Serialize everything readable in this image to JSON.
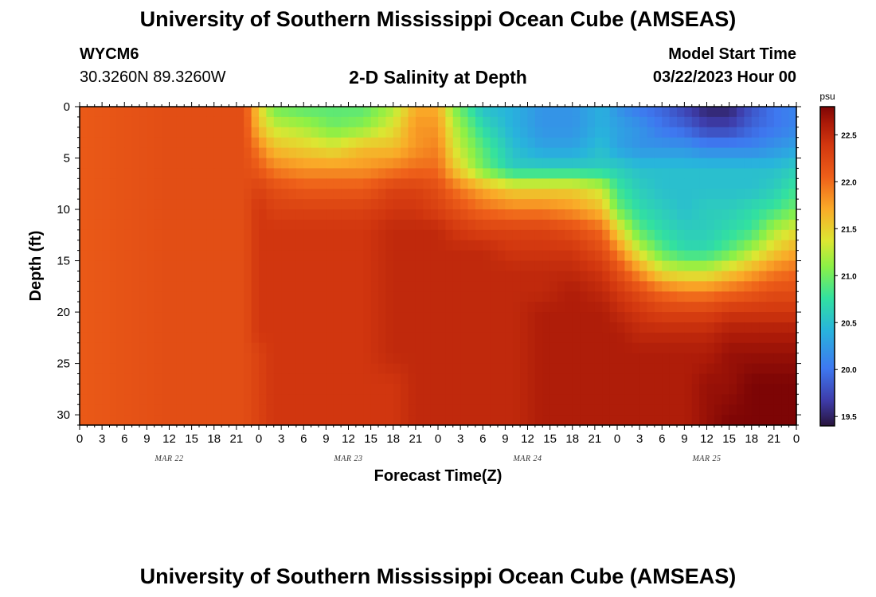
{
  "header": {
    "title": "University of Southern Mississippi Ocean Cube (AMSEAS)",
    "station_id": "WYCM6",
    "station_coords": "30.3260N  89.3260W",
    "plot_title": "2-D Salinity at Depth",
    "model_start_label": "Model Start Time",
    "model_start_value": "03/22/2023 Hour 00"
  },
  "footer": {
    "title": "University of Southern Mississippi Ocean Cube (AMSEAS)"
  },
  "chart_data": {
    "type": "heatmap",
    "title": "2-D Salinity at Depth",
    "xlabel": "Forecast Time(Z)",
    "ylabel": "Depth (ft)",
    "x_range_hours": [
      0,
      96
    ],
    "ylim": [
      0,
      31
    ],
    "y_inverted": true,
    "x_ticks": [
      "0",
      "3",
      "6",
      "9",
      "12",
      "15",
      "18",
      "21",
      "0",
      "3",
      "6",
      "9",
      "12",
      "15",
      "18",
      "21",
      "0",
      "3",
      "6",
      "9",
      "12",
      "15",
      "18",
      "21",
      "0",
      "3",
      "6",
      "9",
      "12",
      "15",
      "18",
      "21",
      "0"
    ],
    "x_tick_hours": [
      0,
      3,
      6,
      9,
      12,
      15,
      18,
      21,
      24,
      27,
      30,
      33,
      36,
      39,
      42,
      45,
      48,
      51,
      54,
      57,
      60,
      63,
      66,
      69,
      72,
      75,
      78,
      81,
      84,
      87,
      90,
      93,
      96
    ],
    "day_labels": [
      {
        "label": "MAR 22",
        "hour": 12
      },
      {
        "label": "MAR 23",
        "hour": 36
      },
      {
        "label": "MAR 24",
        "hour": 60
      },
      {
        "label": "MAR 25",
        "hour": 84
      }
    ],
    "y_ticks": [
      "0",
      "5",
      "10",
      "15",
      "20",
      "25",
      "30"
    ],
    "y_tick_values": [
      0,
      5,
      10,
      15,
      20,
      25,
      30
    ],
    "colorbar": {
      "unit": "psu",
      "min": 19.4,
      "max": 22.8,
      "ticks": [
        "19.5",
        "20.0",
        "20.5",
        "21.0",
        "21.5",
        "22.0",
        "22.5"
      ],
      "tick_values": [
        19.5,
        20.0,
        20.5,
        21.0,
        21.5,
        22.0,
        22.5
      ]
    },
    "salinity_psu": {
      "hours": [
        0,
        12,
        22,
        24,
        26,
        30,
        34,
        38,
        42,
        45,
        48,
        50,
        54,
        58,
        62,
        66,
        70,
        72,
        75,
        78,
        81,
        84,
        87,
        90,
        93,
        96
      ],
      "depths_ft": [
        0,
        2,
        4,
        6,
        8,
        10,
        12,
        14,
        16,
        18,
        20,
        22,
        24,
        27,
        31
      ],
      "values": [
        [
          22.1,
          22.2,
          22.2,
          21.5,
          21.0,
          20.9,
          20.9,
          20.9,
          21.2,
          21.7,
          21.7,
          21.1,
          20.5,
          20.4,
          20.2,
          20.2,
          20.4,
          20.2,
          20.0,
          19.9,
          19.7,
          19.5,
          19.5,
          19.8,
          20.0,
          20.1
        ],
        [
          22.1,
          22.2,
          22.2,
          21.6,
          21.3,
          21.2,
          21.0,
          21.1,
          21.4,
          21.8,
          21.8,
          21.3,
          20.7,
          20.4,
          20.2,
          20.2,
          20.4,
          20.3,
          20.2,
          20.0,
          19.9,
          19.7,
          19.7,
          19.9,
          20.0,
          20.1
        ],
        [
          22.1,
          22.2,
          22.2,
          21.9,
          21.6,
          21.5,
          21.4,
          21.6,
          21.6,
          21.8,
          21.9,
          21.4,
          20.9,
          20.5,
          20.3,
          20.3,
          20.5,
          20.3,
          20.2,
          20.2,
          20.2,
          20.1,
          20.1,
          20.1,
          20.2,
          20.3
        ],
        [
          22.1,
          22.2,
          22.2,
          22.1,
          21.9,
          21.8,
          21.8,
          21.8,
          21.9,
          22.0,
          22.0,
          21.6,
          21.0,
          20.6,
          20.6,
          20.6,
          20.6,
          20.6,
          20.5,
          20.5,
          20.5,
          20.5,
          20.5,
          20.5,
          20.5,
          20.6
        ],
        [
          22.1,
          22.2,
          22.2,
          22.3,
          22.2,
          22.1,
          22.1,
          22.1,
          22.3,
          22.3,
          22.2,
          22.0,
          21.7,
          21.5,
          21.5,
          21.5,
          21.3,
          20.8,
          20.6,
          20.5,
          20.5,
          20.5,
          20.5,
          20.5,
          20.6,
          20.8
        ],
        [
          22.1,
          22.2,
          22.2,
          22.4,
          22.3,
          22.3,
          22.3,
          22.3,
          22.4,
          22.4,
          22.3,
          22.2,
          22.0,
          21.9,
          21.9,
          21.8,
          21.6,
          21.0,
          20.7,
          20.6,
          20.5,
          20.6,
          20.6,
          20.7,
          20.8,
          21.0
        ],
        [
          22.1,
          22.2,
          22.2,
          22.4,
          22.4,
          22.4,
          22.4,
          22.4,
          22.5,
          22.5,
          22.5,
          22.4,
          22.3,
          22.3,
          22.3,
          22.2,
          22.0,
          21.5,
          20.9,
          20.7,
          20.6,
          20.6,
          20.7,
          20.8,
          21.2,
          21.4
        ],
        [
          22.1,
          22.2,
          22.2,
          22.4,
          22.4,
          22.4,
          22.4,
          22.4,
          22.5,
          22.5,
          22.5,
          22.5,
          22.5,
          22.4,
          22.4,
          22.4,
          22.2,
          21.9,
          21.3,
          20.9,
          20.7,
          20.7,
          20.9,
          21.2,
          21.5,
          21.7
        ],
        [
          22.1,
          22.2,
          22.2,
          22.4,
          22.4,
          22.4,
          22.4,
          22.4,
          22.5,
          22.5,
          22.5,
          22.5,
          22.5,
          22.5,
          22.5,
          22.5,
          22.4,
          22.2,
          21.8,
          21.4,
          21.3,
          21.3,
          21.5,
          21.7,
          21.9,
          22.0
        ],
        [
          22.1,
          22.2,
          22.2,
          22.4,
          22.4,
          22.4,
          22.4,
          22.4,
          22.5,
          22.5,
          22.5,
          22.5,
          22.5,
          22.5,
          22.5,
          22.6,
          22.5,
          22.4,
          22.2,
          22.0,
          21.9,
          21.9,
          22.0,
          22.1,
          22.2,
          22.2
        ],
        [
          22.1,
          22.2,
          22.2,
          22.4,
          22.4,
          22.4,
          22.4,
          22.4,
          22.5,
          22.5,
          22.5,
          22.5,
          22.5,
          22.5,
          22.6,
          22.6,
          22.6,
          22.5,
          22.4,
          22.3,
          22.3,
          22.3,
          22.4,
          22.4,
          22.4,
          22.4
        ],
        [
          22.1,
          22.2,
          22.2,
          22.4,
          22.4,
          22.4,
          22.4,
          22.4,
          22.5,
          22.5,
          22.5,
          22.5,
          22.5,
          22.5,
          22.6,
          22.6,
          22.6,
          22.6,
          22.5,
          22.5,
          22.5,
          22.5,
          22.6,
          22.6,
          22.6,
          22.6
        ],
        [
          22.1,
          22.2,
          22.2,
          22.3,
          22.4,
          22.4,
          22.4,
          22.4,
          22.5,
          22.5,
          22.5,
          22.5,
          22.5,
          22.5,
          22.6,
          22.6,
          22.6,
          22.6,
          22.6,
          22.6,
          22.6,
          22.6,
          22.7,
          22.7,
          22.7,
          22.7
        ],
        [
          22.1,
          22.2,
          22.2,
          22.3,
          22.4,
          22.4,
          22.4,
          22.4,
          22.4,
          22.5,
          22.5,
          22.5,
          22.5,
          22.5,
          22.6,
          22.6,
          22.6,
          22.6,
          22.6,
          22.6,
          22.6,
          22.7,
          22.7,
          22.8,
          22.8,
          22.8
        ],
        [
          22.1,
          22.2,
          22.2,
          22.3,
          22.4,
          22.4,
          22.4,
          22.4,
          22.4,
          22.5,
          22.5,
          22.5,
          22.5,
          22.5,
          22.6,
          22.6,
          22.6,
          22.6,
          22.6,
          22.6,
          22.6,
          22.7,
          22.8,
          22.8,
          22.8,
          22.8
        ]
      ]
    }
  }
}
